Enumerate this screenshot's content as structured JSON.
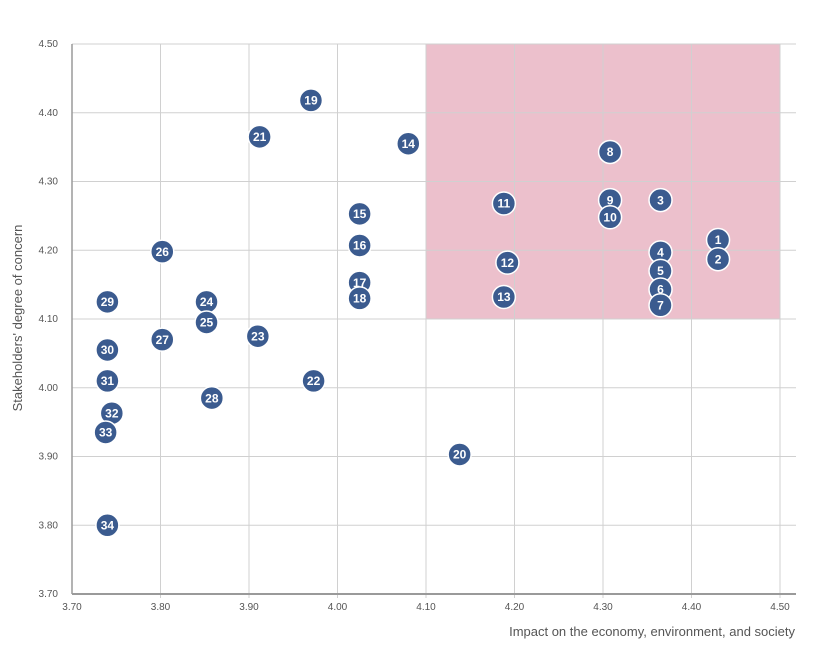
{
  "chart_data": {
    "type": "scatter",
    "title": "",
    "xlabel": "Impact on the economy, environment, and society",
    "ylabel": "Stakeholders' degree of concern",
    "xlim": [
      3.7,
      4.5
    ],
    "ylim": [
      3.7,
      4.5
    ],
    "x_ticks": [
      "3.70",
      "3.80",
      "3.90",
      "4.00",
      "4.10",
      "4.20",
      "4.30",
      "4.40",
      "4.50"
    ],
    "y_ticks": [
      "3.70",
      "3.80",
      "3.90",
      "4.00",
      "4.10",
      "4.20",
      "4.30",
      "4.40",
      "4.50"
    ],
    "grid": true,
    "highlight_region": {
      "x": [
        4.1,
        4.5
      ],
      "y": [
        4.1,
        4.5
      ],
      "color": "#ecc0cc"
    },
    "marker_color": "#3b5b8f",
    "points": [
      {
        "label": "1",
        "x": 4.43,
        "y": 4.215
      },
      {
        "label": "2",
        "x": 4.43,
        "y": 4.187
      },
      {
        "label": "3",
        "x": 4.365,
        "y": 4.273
      },
      {
        "label": "4",
        "x": 4.365,
        "y": 4.197
      },
      {
        "label": "5",
        "x": 4.365,
        "y": 4.17
      },
      {
        "label": "6",
        "x": 4.365,
        "y": 4.143
      },
      {
        "label": "7",
        "x": 4.365,
        "y": 4.12
      },
      {
        "label": "8",
        "x": 4.308,
        "y": 4.343
      },
      {
        "label": "9",
        "x": 4.308,
        "y": 4.273
      },
      {
        "label": "10",
        "x": 4.308,
        "y": 4.248
      },
      {
        "label": "11",
        "x": 4.188,
        "y": 4.268
      },
      {
        "label": "12",
        "x": 4.192,
        "y": 4.182
      },
      {
        "label": "13",
        "x": 4.188,
        "y": 4.132
      },
      {
        "label": "14",
        "x": 4.08,
        "y": 4.355
      },
      {
        "label": "15",
        "x": 4.025,
        "y": 4.253
      },
      {
        "label": "16",
        "x": 4.025,
        "y": 4.207
      },
      {
        "label": "17",
        "x": 4.025,
        "y": 4.153
      },
      {
        "label": "18",
        "x": 4.025,
        "y": 4.13
      },
      {
        "label": "19",
        "x": 3.97,
        "y": 4.418
      },
      {
        "label": "20",
        "x": 4.138,
        "y": 3.903
      },
      {
        "label": "21",
        "x": 3.912,
        "y": 4.365
      },
      {
        "label": "22",
        "x": 3.973,
        "y": 4.01
      },
      {
        "label": "23",
        "x": 3.91,
        "y": 4.075
      },
      {
        "label": "24",
        "x": 3.852,
        "y": 4.125
      },
      {
        "label": "25",
        "x": 3.852,
        "y": 4.095
      },
      {
        "label": "26",
        "x": 3.802,
        "y": 4.198
      },
      {
        "label": "27",
        "x": 3.802,
        "y": 4.07
      },
      {
        "label": "28",
        "x": 3.858,
        "y": 3.985
      },
      {
        "label": "29",
        "x": 3.74,
        "y": 4.125
      },
      {
        "label": "30",
        "x": 3.74,
        "y": 4.055
      },
      {
        "label": "31",
        "x": 3.74,
        "y": 4.01
      },
      {
        "label": "32",
        "x": 3.745,
        "y": 3.963
      },
      {
        "label": "33",
        "x": 3.738,
        "y": 3.935
      },
      {
        "label": "34",
        "x": 3.74,
        "y": 3.8
      }
    ]
  }
}
